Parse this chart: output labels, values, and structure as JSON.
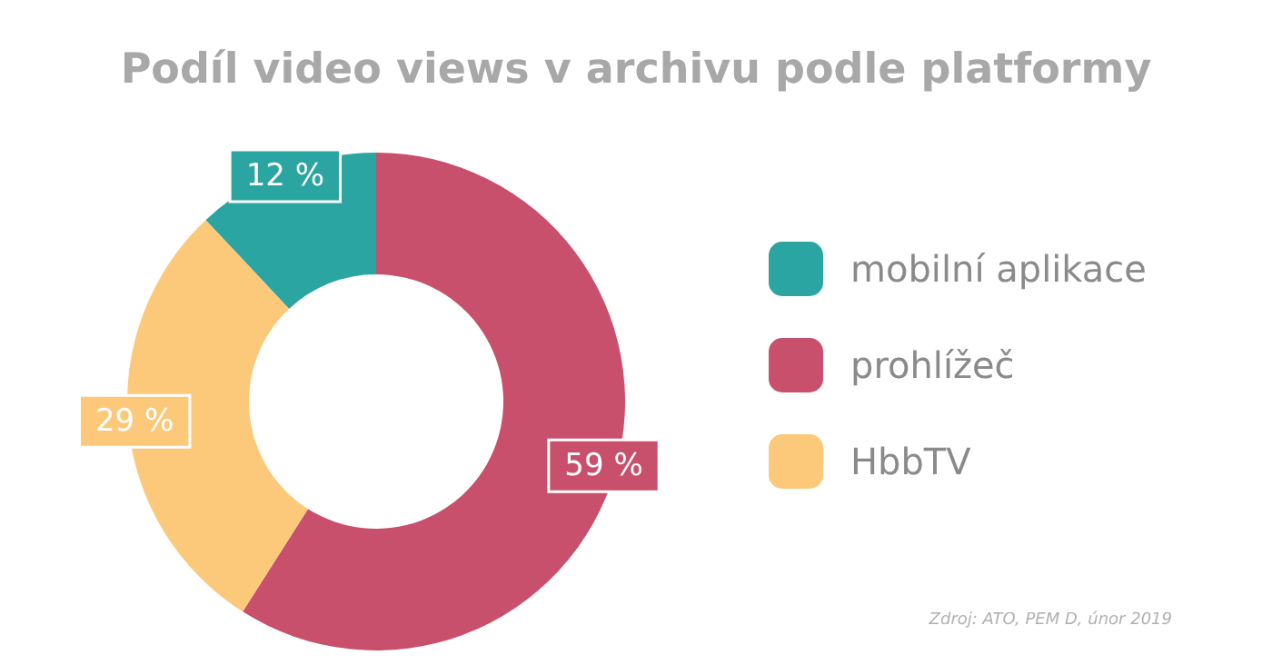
{
  "chart_data": {
    "type": "donut",
    "title": "Podíl video views v archivu podle platformy",
    "categories": [
      "mobilní aplikace",
      "prohlížeč",
      "HbbTV"
    ],
    "values": [
      12,
      59,
      29
    ],
    "colors": [
      "#2ba5a1",
      "#c8506c",
      "#fcc97b"
    ],
    "value_labels": [
      "12 %",
      "59 %",
      "29 %"
    ],
    "legend": "right",
    "annotations": [
      "Zdroj: ATO, PEM D, únor 2019"
    ]
  }
}
